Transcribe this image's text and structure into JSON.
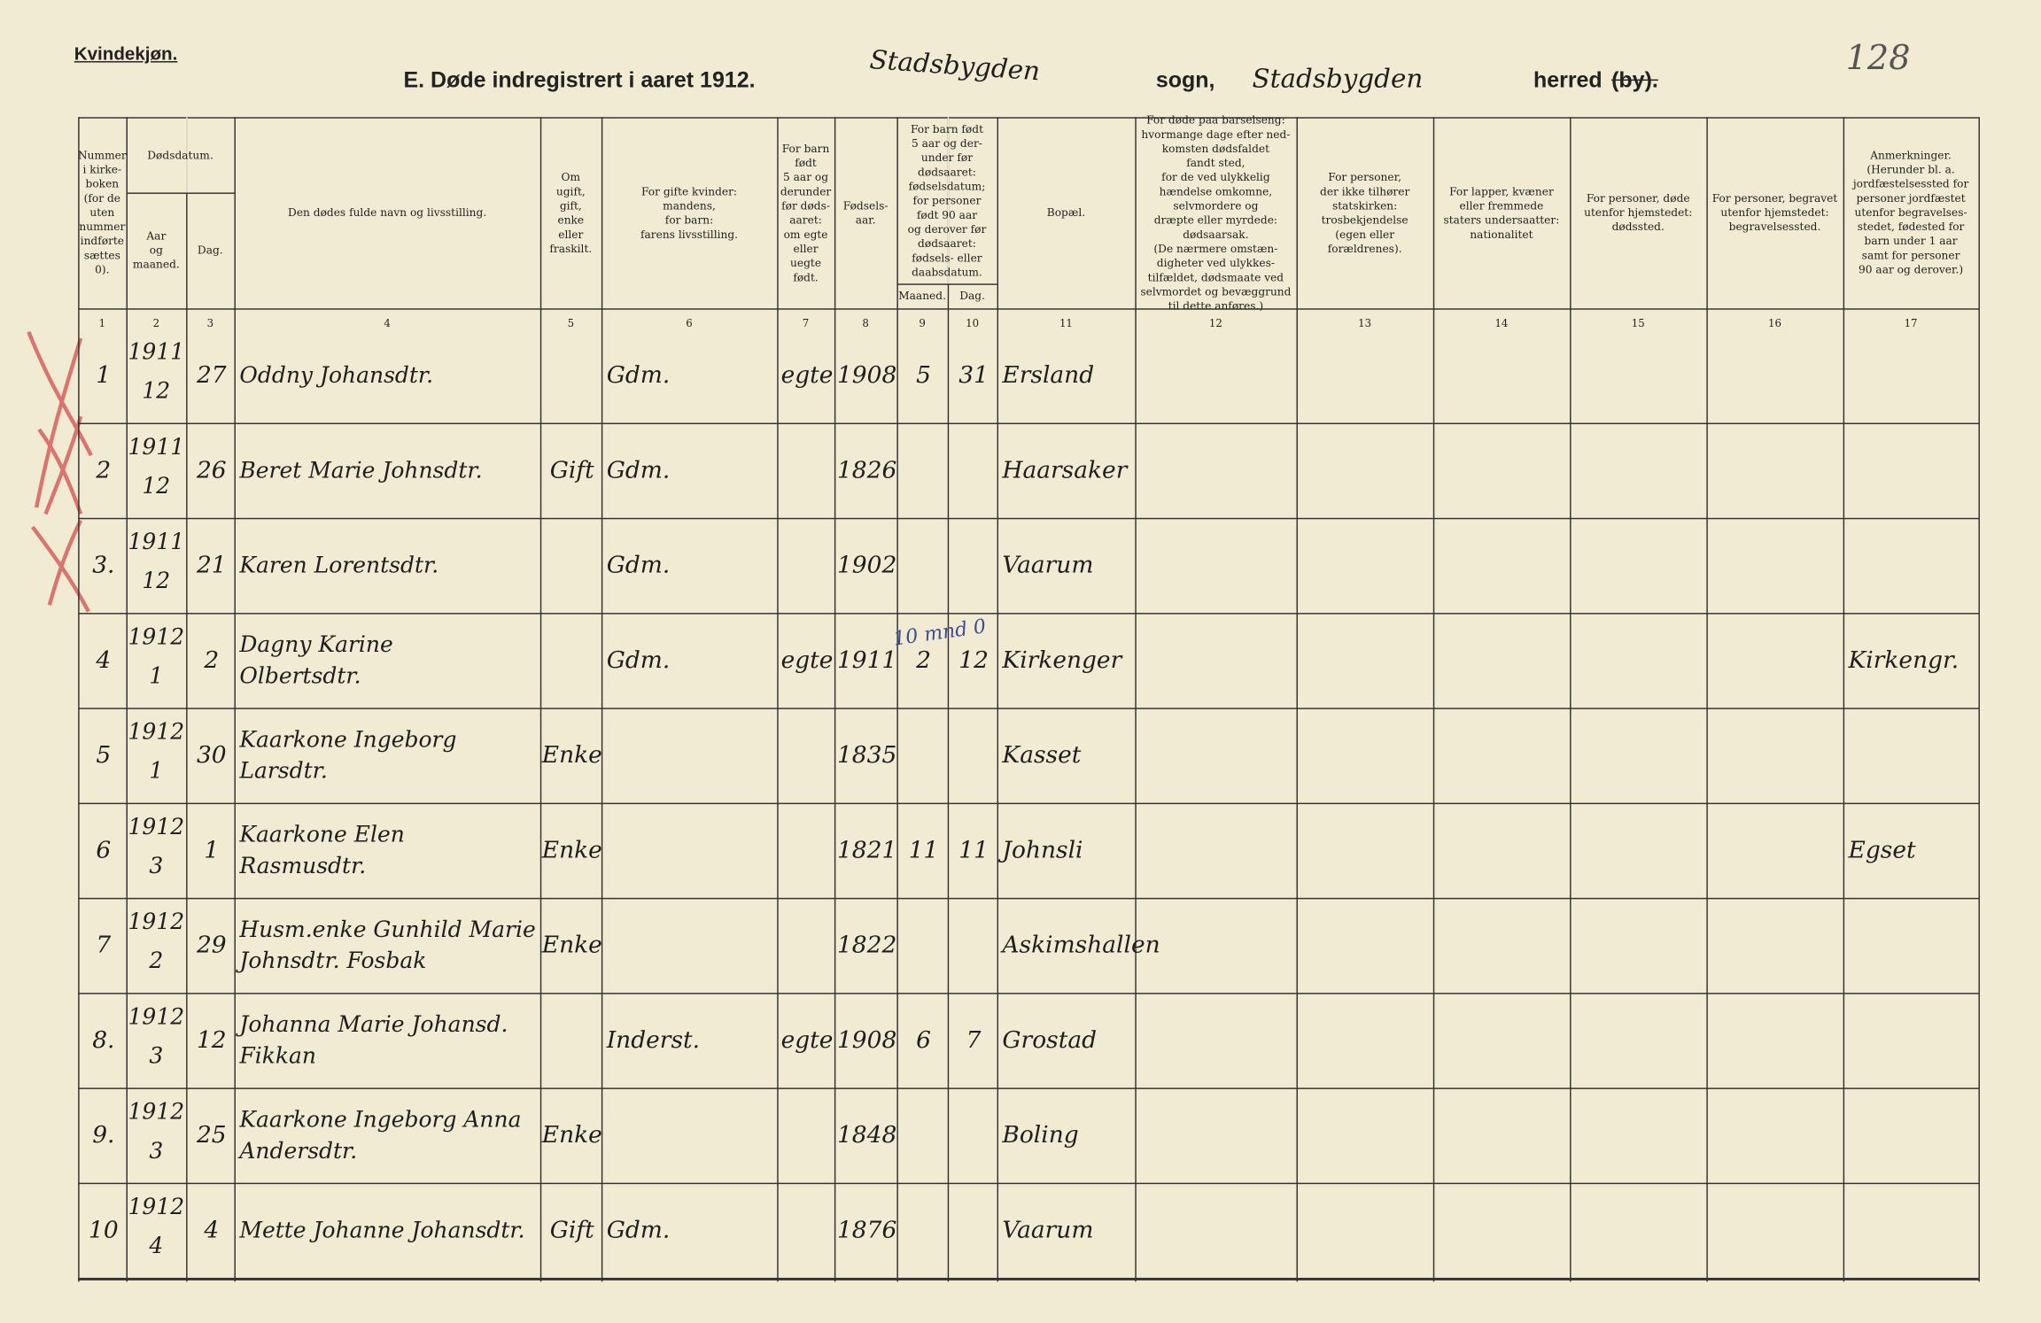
{
  "header": {
    "section": "Kvindekjøn.",
    "title": "E.  Døde indregistrert i aaret 1912.",
    "parish_hand": "Stadsbygden",
    "parish_label": "sogn,",
    "district_hand": "Stadsbygden",
    "district_label": "herred",
    "district_struck": "(by).",
    "page_number": "128"
  },
  "table": {
    "columns": [
      "Nummer\ni kirke-\nboken\n(for de\nuten\nnummer\nindførte\nsættes\n0).",
      "Aar\nog\nmaaned.",
      "Dag.",
      "Den dødes fulde navn og livsstilling.",
      "Om\nugift,\ngift,\nenke\neller\nfraskilt.",
      "For gifte kvinder:\nmandens,\nfor barn:\nfarens livsstilling.",
      "For barn\nfødt\n5 aar og\nderunder\nfør døds-\naaret:\nom egte\neller\nuegte\nfødt.",
      "Fødsels-\naar.",
      "Maaned.",
      "Dag.",
      "Bopæl.",
      "For døde paa barselseng:\nhvormange dage efter ned-\nkomsten dødsfaldet\nfandt sted,\nfor de ved ulykkelig\nhændelse omkomne,\nselvmordere og\ndræpte eller myrdede:\ndødsaarsak.\n(De nærmere omstæn-\ndigheter ved ulykkes-\ntilfældet, dødsmaate ved\nselvmordet og bevæggrund\ntil dette anføres.)",
      "For personer,\nder ikke tilhører\nstatskirken:\ntrosbekjendelse\n(egen eller forældrenes).",
      "For lapper, kvæner\neller fremmede\nstaters undersaatter:\nnationalitet",
      "For personer, døde\nutenfor hjemstedet:\ndødssted.",
      "For personer, begravet\nutenfor hjemstedet:\nbegravelsessted.",
      "Anmerkninger.\n(Herunder bl. a.\njordfæstelsessted for\npersoner jordfæstet\nutenfor begravelses-\nstedet, fødested for\nbarn under 1 aar\nsamt for personer\n90 aar og derover.)"
    ],
    "groups": [
      "Dødsdatum.",
      "For barn født\n5 aar og der-\nunder før\ndødsaaret:\nfødselsdatum;\nfor personer\nfødt 90 aar\nog derover før\ndødsaaret:\nfødsels- eller\ndaabsdatum."
    ],
    "column_numbers": [
      "1",
      "2",
      "3",
      "4",
      "5",
      "6",
      "7",
      "8",
      "9",
      "10",
      "11",
      "12",
      "13",
      "14",
      "15",
      "16",
      "17"
    ],
    "rows": [
      {
        "no": "1",
        "year": "1911",
        "month": "12",
        "day": "27",
        "name": "Oddny Johansdtr.",
        "father": "Gdm.",
        "legit": "egte",
        "birth_year": "1908",
        "b_month": "5",
        "b_day": "31",
        "residence": "Ersland"
      },
      {
        "no": "2",
        "year": "1911",
        "month": "12",
        "day": "26",
        "name": "Beret Marie Johnsdtr.",
        "status": "Gift",
        "father": "Gdm.",
        "birth_year": "1826",
        "residence": "Haarsaker"
      },
      {
        "no": "3.",
        "year": "1911",
        "month": "12",
        "day": "21",
        "name": "Karen Lorentsdtr.",
        "father": "Gdm.",
        "birth_year": "1902",
        "residence": "Vaarum"
      },
      {
        "no": "4",
        "year": "1912",
        "month": "1",
        "day": "2",
        "name": "Dagny Karine\nOlbertsdtr.",
        "father": "Gdm.",
        "legit": "egte",
        "birth_year": "1911",
        "note": "10 mnd 0",
        "b_month": "2",
        "b_day": "12",
        "residence": "Kirkenger",
        "remarks": "Kirkengr."
      },
      {
        "no": "5",
        "year": "1912",
        "month": "1",
        "day": "30",
        "name": "Kaarkone Ingeborg Larsdtr.",
        "status": "Enke",
        "birth_year": "1835",
        "residence": "Kasset"
      },
      {
        "no": "6",
        "year": "1912",
        "month": "3",
        "day": "1",
        "name": "Kaarkone Elen Rasmusdtr.",
        "status": "Enke",
        "birth_year": "1821",
        "b_month": "11",
        "b_day": "11",
        "residence": "Johnsli",
        "remarks": "Egset"
      },
      {
        "no": "7",
        "year": "1912",
        "month": "2",
        "day": "29",
        "name": "Husm.enke Gunhild Marie\nJohnsdtr. Fosbak",
        "status": "Enke",
        "birth_year": "1822",
        "residence": "Askimshallen"
      },
      {
        "no": "8.",
        "year": "1912",
        "month": "3",
        "day": "12",
        "name": "Johanna Marie Johansd.\nFikkan",
        "father": "Inderst.",
        "legit": "egte",
        "birth_year": "1908",
        "b_month": "6",
        "b_day": "7",
        "residence": "Grostad"
      },
      {
        "no": "9.",
        "year": "1912",
        "month": "3",
        "day": "25",
        "name": "Kaarkone Ingeborg Anna\nAndersdtr.",
        "status": "Enke",
        "birth_year": "1848",
        "residence": "Boling"
      },
      {
        "no": "10",
        "year": "1912",
        "month": "4",
        "day": "4",
        "name": "Mette Johanne Johansdtr.",
        "status": "Gift",
        "father": "Gdm.",
        "birth_year": "1876",
        "residence": "Vaarum"
      }
    ]
  }
}
